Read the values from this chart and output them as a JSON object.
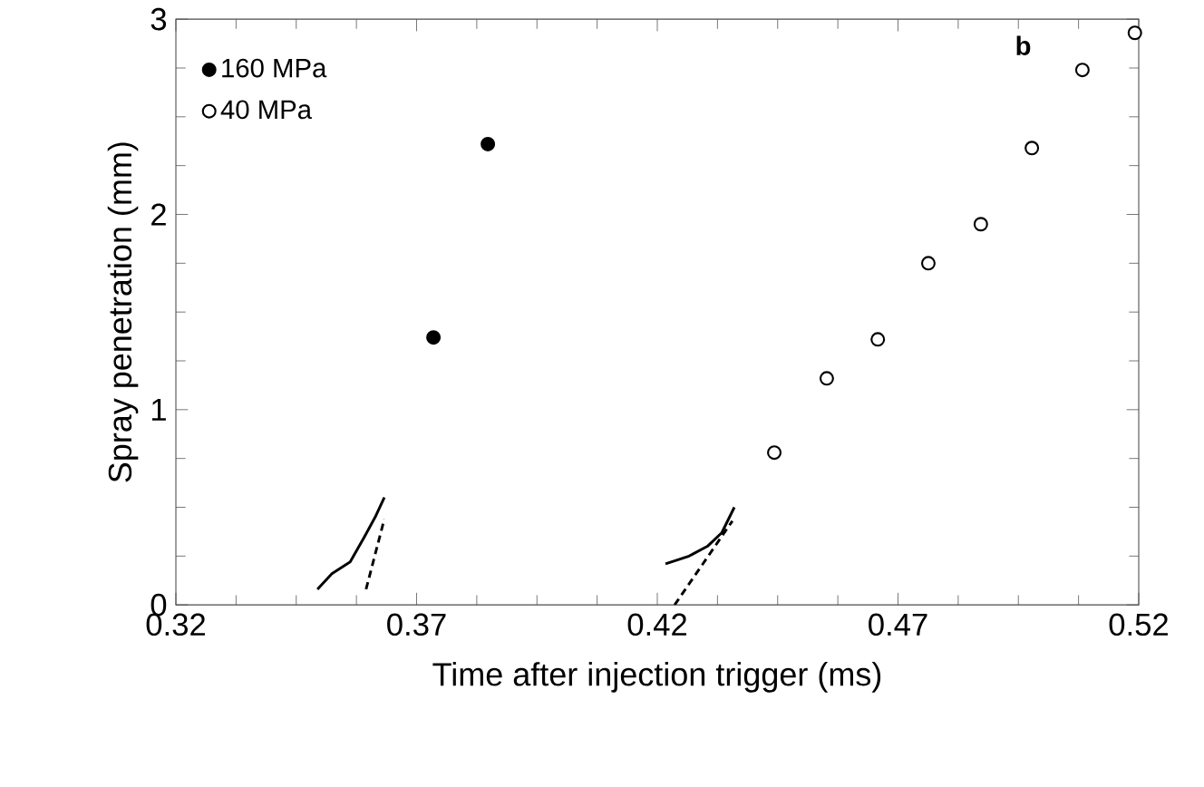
{
  "chart_data": {
    "type": "scatter",
    "xlabel": "Time after injection trigger (ms)",
    "ylabel": "Spray penetration (mm)",
    "xlim": [
      0.32,
      0.52
    ],
    "ylim": [
      0,
      3
    ],
    "xticks": [
      0.32,
      0.37,
      0.42,
      0.47,
      0.52
    ],
    "yticks": [
      0,
      1,
      2,
      3
    ],
    "legend": "top left",
    "grid": false,
    "annotations": [
      "b"
    ],
    "series": [
      {
        "name": "160 MPa",
        "marker": "circle",
        "color": "#000000",
        "x": [
          0.3735,
          0.3848
        ],
        "values": [
          1.37,
          2.36
        ]
      },
      {
        "name": "40 MPa",
        "marker": "circle",
        "color": "#ffffff",
        "x": [
          0.4443,
          0.4552,
          0.4658,
          0.4763,
          0.4872,
          0.4978,
          0.5083,
          0.5192
        ],
        "values": [
          0.78,
          1.16,
          1.36,
          1.75,
          1.95,
          2.34,
          2.74,
          2.93
        ]
      },
      {
        "type": "line",
        "line_style": "solid",
        "color": "#000000",
        "x": [
          0.3494,
          0.3524,
          0.3562,
          0.3592,
          0.3614,
          0.3633
        ],
        "values": [
          0.08,
          0.16,
          0.22,
          0.35,
          0.45,
          0.55
        ]
      },
      {
        "type": "line",
        "line_style": "dashed",
        "color": "#000000",
        "x": [
          0.3595,
          0.3633
        ],
        "values": [
          0.08,
          0.44
        ]
      },
      {
        "type": "line",
        "line_style": "solid",
        "color": "#000000",
        "x": [
          0.4217,
          0.4266,
          0.4304,
          0.4334,
          0.436
        ],
        "values": [
          0.21,
          0.25,
          0.3,
          0.37,
          0.5
        ]
      },
      {
        "type": "line",
        "line_style": "dashed",
        "color": "#000000",
        "x": [
          0.4236,
          0.4356
        ],
        "values": [
          0.0,
          0.43
        ]
      }
    ]
  }
}
